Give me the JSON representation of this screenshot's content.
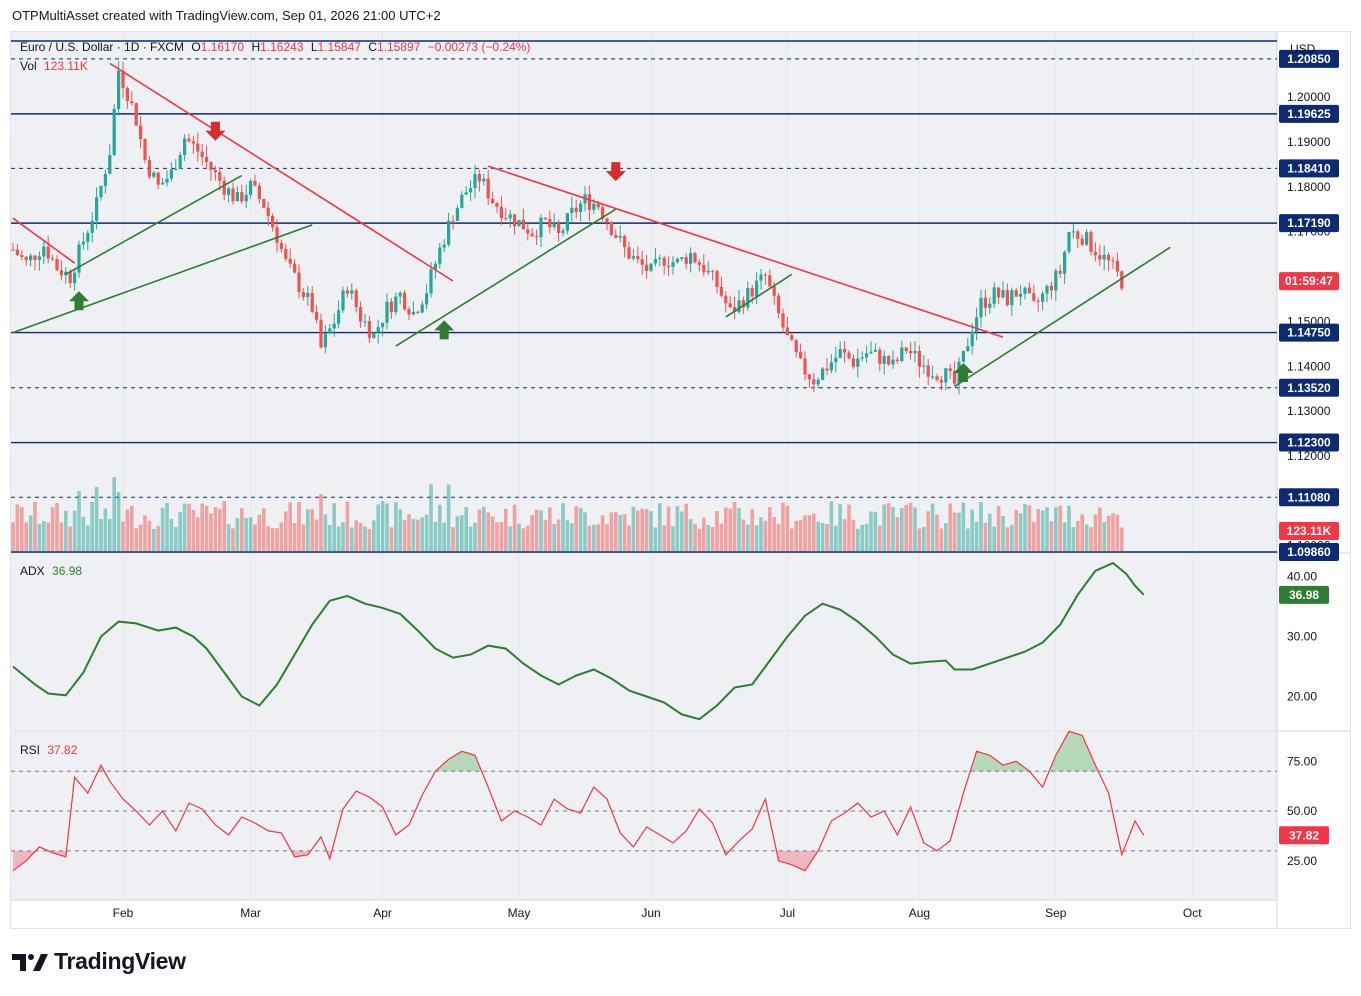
{
  "header": {
    "text": "OTPMultiAsset created with TradingView.com, Sep 01, 2026 21:00 UTC+2"
  },
  "legend": {
    "symbol": "Euro / U.S. Dollar · 1D · FXCM",
    "o_label": "O",
    "o": "1.16170",
    "h_label": "H",
    "h": "1.16243",
    "l_label": "L",
    "l": "1.15847",
    "c_label": "C",
    "c": "1.15897",
    "change": "−0.00273 (−0.24%)",
    "vol_label": "Vol",
    "vol": "123.11K",
    "adx_label": "ADX",
    "adx": "36.98",
    "rsi_label": "RSI",
    "rsi": "37.82"
  },
  "currency": "USD",
  "footer": {
    "brand": "TradingView"
  },
  "colors": {
    "up": "#26a69a",
    "down": "#ef5350",
    "line_green": "#2e7d32",
    "trend_red": "#f23645",
    "level_blue": "#0d2b73",
    "rsi": "#f23645"
  },
  "chart_data": [
    {
      "type": "candlestick",
      "title": "Euro / U.S. Dollar · 1D · FXCM",
      "x_ticks": [
        "Feb",
        "Mar",
        "Apr",
        "May",
        "Jun",
        "Jul",
        "Aug",
        "Sep",
        "Oct"
      ],
      "y_ticks": [
        "1.20000",
        "1.19000",
        "1.18000",
        "1.17000",
        "1.16000",
        "1.15000",
        "1.14000",
        "1.13000",
        "1.12000",
        "1.11000",
        "1.10000"
      ],
      "ylim": [
        1.0986,
        1.2145
      ],
      "price_levels": [
        {
          "label": "1.20850",
          "value": 1.2085,
          "style": "dashed"
        },
        {
          "label": "1.19625",
          "value": 1.19625,
          "style": "solid"
        },
        {
          "label": "1.18410",
          "value": 1.1841,
          "style": "dashed"
        },
        {
          "label": "1.17190",
          "value": 1.1719,
          "style": "solid"
        },
        {
          "label": "1.14750",
          "value": 1.1475,
          "style": "solid"
        },
        {
          "label": "1.13520",
          "value": 1.1352,
          "style": "dashed"
        },
        {
          "label": "1.12300",
          "value": 1.123,
          "style": "solid"
        },
        {
          "label": "1.11080",
          "value": 1.1108,
          "style": "dashed"
        },
        {
          "label": "1.09860",
          "value": 1.0986,
          "style": "solid"
        }
      ],
      "current_price_value": 1.15897,
      "current_price_label": "01:59:47",
      "close_path": [
        [
          0,
          1.166
        ],
        [
          3,
          1.163
        ],
        [
          7,
          1.167
        ],
        [
          10,
          1.162
        ],
        [
          13,
          1.16
        ],
        [
          16,
          1.168
        ],
        [
          19,
          1.176
        ],
        [
          22,
          1.188
        ],
        [
          24,
          1.206
        ],
        [
          26,
          1.201
        ],
        [
          28,
          1.195
        ],
        [
          30,
          1.186
        ],
        [
          33,
          1.18
        ],
        [
          36,
          1.183
        ],
        [
          39,
          1.191
        ],
        [
          42,
          1.188
        ],
        [
          45,
          1.184
        ],
        [
          48,
          1.18
        ],
        [
          51,
          1.177
        ],
        [
          54,
          1.18
        ],
        [
          57,
          1.176
        ],
        [
          60,
          1.169
        ],
        [
          62,
          1.163
        ],
        [
          65,
          1.158
        ],
        [
          68,
          1.153
        ],
        [
          70,
          1.144
        ],
        [
          73,
          1.15
        ],
        [
          76,
          1.158
        ],
        [
          79,
          1.151
        ],
        [
          82,
          1.147
        ],
        [
          85,
          1.153
        ],
        [
          88,
          1.156
        ],
        [
          91,
          1.152
        ],
        [
          94,
          1.157
        ],
        [
          97,
          1.166
        ],
        [
          100,
          1.174
        ],
        [
          103,
          1.179
        ],
        [
          106,
          1.182
        ],
        [
          109,
          1.177
        ],
        [
          112,
          1.174
        ],
        [
          115,
          1.172
        ],
        [
          118,
          1.17
        ],
        [
          121,
          1.172
        ],
        [
          124,
          1.169
        ],
        [
          127,
          1.174
        ],
        [
          130,
          1.177
        ],
        [
          133,
          1.176
        ],
        [
          136,
          1.171
        ],
        [
          139,
          1.166
        ],
        [
          142,
          1.163
        ],
        [
          145,
          1.161
        ],
        [
          148,
          1.164
        ],
        [
          151,
          1.163
        ],
        [
          154,
          1.165
        ],
        [
          157,
          1.162
        ],
        [
          160,
          1.158
        ],
        [
          163,
          1.152
        ],
        [
          166,
          1.155
        ],
        [
          169,
          1.158
        ],
        [
          171,
          1.16
        ],
        [
          173,
          1.154
        ],
        [
          176,
          1.146
        ],
        [
          179,
          1.14
        ],
        [
          182,
          1.137
        ],
        [
          185,
          1.14
        ],
        [
          188,
          1.143
        ],
        [
          191,
          1.141
        ],
        [
          194,
          1.143
        ],
        [
          197,
          1.142
        ],
        [
          200,
          1.14
        ],
        [
          203,
          1.144
        ],
        [
          206,
          1.141
        ],
        [
          209,
          1.139
        ],
        [
          212,
          1.138
        ],
        [
          214,
          1.136
        ],
        [
          216,
          1.142
        ],
        [
          218,
          1.149
        ],
        [
          220,
          1.154
        ],
        [
          223,
          1.156
        ],
        [
          226,
          1.155
        ],
        [
          229,
          1.157
        ],
        [
          232,
          1.153
        ],
        [
          235,
          1.157
        ],
        [
          238,
          1.161
        ],
        [
          240,
          1.17
        ],
        [
          243,
          1.169
        ],
        [
          246,
          1.166
        ],
        [
          249,
          1.163
        ],
        [
          252,
          1.159
        ]
      ],
      "volume_value": "123.11K",
      "annotations": [
        {
          "type": "arrow-up",
          "x_index": 15,
          "price": 1.1545
        },
        {
          "type": "arrow-down",
          "x_index": 46,
          "price": 1.1925
        },
        {
          "type": "arrow-up",
          "x_index": 98,
          "price": 1.148
        },
        {
          "type": "arrow-down",
          "x_index": 137,
          "price": 1.1835
        },
        {
          "type": "arrow-up",
          "x_index": 216,
          "price": 1.1385
        }
      ],
      "trendlines": [
        {
          "color": "trend_red",
          "from": [
            0,
            1.173
          ],
          "to": [
            14,
            1.163
          ]
        },
        {
          "color": "trend_red",
          "from": [
            22,
            1.2075
          ],
          "to": [
            100,
            1.159
          ]
        },
        {
          "color": "trend_red",
          "from": [
            108,
            1.1846
          ],
          "to": [
            225,
            1.1465
          ]
        },
        {
          "color": "line_green",
          "from": [
            12,
            1.1605
          ],
          "to": [
            52,
            1.1825
          ]
        },
        {
          "color": "line_green",
          "from": [
            0,
            1.1475
          ],
          "to": [
            68,
            1.1715
          ]
        },
        {
          "color": "line_green",
          "from": [
            87,
            1.1445
          ],
          "to": [
            137,
            1.175
          ]
        },
        {
          "color": "line_green",
          "from": [
            162,
            1.151
          ],
          "to": [
            177,
            1.1605
          ]
        },
        {
          "color": "line_green",
          "from": [
            214,
            1.1355
          ],
          "to": [
            263,
            1.1665
          ]
        }
      ]
    },
    {
      "type": "line",
      "title": "ADX 36.98",
      "y_ticks": [
        "40.00",
        "30.00",
        "20.00"
      ],
      "ylim": [
        14.4,
        43.8
      ],
      "current_value": 36.98,
      "path": [
        [
          0,
          25
        ],
        [
          5,
          22
        ],
        [
          8,
          20.5
        ],
        [
          12,
          20.2
        ],
        [
          16,
          24
        ],
        [
          20,
          30
        ],
        [
          24,
          32.5
        ],
        [
          28,
          32.2
        ],
        [
          33,
          31
        ],
        [
          37,
          31.5
        ],
        [
          41,
          30
        ],
        [
          44,
          28
        ],
        [
          48,
          24
        ],
        [
          52,
          20
        ],
        [
          56,
          18.5
        ],
        [
          60,
          22
        ],
        [
          64,
          27
        ],
        [
          68,
          32
        ],
        [
          72,
          36
        ],
        [
          76,
          36.8
        ],
        [
          80,
          35.5
        ],
        [
          84,
          34.8
        ],
        [
          88,
          33.8
        ],
        [
          92,
          31
        ],
        [
          96,
          28
        ],
        [
          100,
          26.5
        ],
        [
          104,
          27
        ],
        [
          108,
          28.5
        ],
        [
          112,
          28
        ],
        [
          116,
          25.5
        ],
        [
          120,
          23.5
        ],
        [
          124,
          22
        ],
        [
          128,
          23.5
        ],
        [
          132,
          24.5
        ],
        [
          136,
          23
        ],
        [
          140,
          21
        ],
        [
          144,
          20
        ],
        [
          148,
          19
        ],
        [
          152,
          17
        ],
        [
          156,
          16.2
        ],
        [
          160,
          18.5
        ],
        [
          164,
          21.5
        ],
        [
          168,
          22
        ],
        [
          172,
          26
        ],
        [
          176,
          30
        ],
        [
          180,
          33.5
        ],
        [
          184,
          35.5
        ],
        [
          188,
          34.5
        ],
        [
          192,
          32.5
        ],
        [
          196,
          30
        ],
        [
          200,
          27
        ],
        [
          204,
          25.5
        ],
        [
          208,
          25.8
        ],
        [
          212,
          26
        ],
        [
          214,
          24.5
        ],
        [
          218,
          24.5
        ],
        [
          222,
          25.5
        ],
        [
          226,
          26.5
        ],
        [
          230,
          27.5
        ],
        [
          234,
          29
        ],
        [
          238,
          32
        ],
        [
          242,
          37
        ],
        [
          246,
          41
        ],
        [
          250,
          42.3
        ],
        [
          253,
          40.5
        ],
        [
          255,
          38.5
        ],
        [
          257,
          36.98
        ]
      ]
    },
    {
      "type": "line",
      "title": "RSI 37.82",
      "y_ticks": [
        "75.00",
        "50.00",
        "25.00"
      ],
      "ylim": [
        5.3,
        89.7
      ],
      "bands": [
        70,
        50,
        30
      ],
      "current_value": 37.82,
      "path": [
        [
          0,
          20
        ],
        [
          3,
          25
        ],
        [
          6,
          32
        ],
        [
          9,
          29
        ],
        [
          12,
          27
        ],
        [
          14,
          67
        ],
        [
          17,
          59
        ],
        [
          20,
          73
        ],
        [
          22,
          65
        ],
        [
          25,
          56
        ],
        [
          28,
          50
        ],
        [
          31,
          43
        ],
        [
          34,
          50
        ],
        [
          37,
          40
        ],
        [
          40,
          54
        ],
        [
          43,
          51
        ],
        [
          46,
          43
        ],
        [
          49,
          38
        ],
        [
          52,
          47
        ],
        [
          55,
          44
        ],
        [
          58,
          40
        ],
        [
          61,
          39
        ],
        [
          64,
          27
        ],
        [
          67,
          28
        ],
        [
          70,
          37
        ],
        [
          72,
          26
        ],
        [
          75,
          51
        ],
        [
          78,
          60
        ],
        [
          81,
          57
        ],
        [
          84,
          52
        ],
        [
          87,
          38
        ],
        [
          90,
          43
        ],
        [
          93,
          58
        ],
        [
          96,
          70
        ],
        [
          99,
          76
        ],
        [
          102,
          80
        ],
        [
          105,
          78
        ],
        [
          108,
          62
        ],
        [
          111,
          45
        ],
        [
          114,
          50
        ],
        [
          117,
          47
        ],
        [
          120,
          43
        ],
        [
          123,
          56
        ],
        [
          126,
          51
        ],
        [
          129,
          49
        ],
        [
          132,
          62
        ],
        [
          135,
          56
        ],
        [
          138,
          39
        ],
        [
          141,
          32
        ],
        [
          144,
          42
        ],
        [
          147,
          38
        ],
        [
          150,
          34
        ],
        [
          153,
          40
        ],
        [
          156,
          51
        ],
        [
          159,
          44
        ],
        [
          162,
          28
        ],
        [
          165,
          35
        ],
        [
          168,
          41
        ],
        [
          171,
          56
        ],
        [
          174,
          25
        ],
        [
          177,
          23
        ],
        [
          180,
          20
        ],
        [
          183,
          30
        ],
        [
          186,
          45
        ],
        [
          189,
          49
        ],
        [
          192,
          54
        ],
        [
          195,
          47
        ],
        [
          198,
          50
        ],
        [
          201,
          38
        ],
        [
          204,
          52
        ],
        [
          207,
          34
        ],
        [
          210,
          30
        ],
        [
          213,
          35
        ],
        [
          216,
          59
        ],
        [
          219,
          80
        ],
        [
          222,
          78
        ],
        [
          225,
          73
        ],
        [
          228,
          75
        ],
        [
          231,
          70
        ],
        [
          234,
          62
        ],
        [
          237,
          78
        ],
        [
          240,
          90
        ],
        [
          243,
          88
        ],
        [
          246,
          73
        ],
        [
          249,
          59
        ],
        [
          252,
          28
        ],
        [
          255,
          45
        ],
        [
          257,
          37.82
        ]
      ]
    }
  ]
}
